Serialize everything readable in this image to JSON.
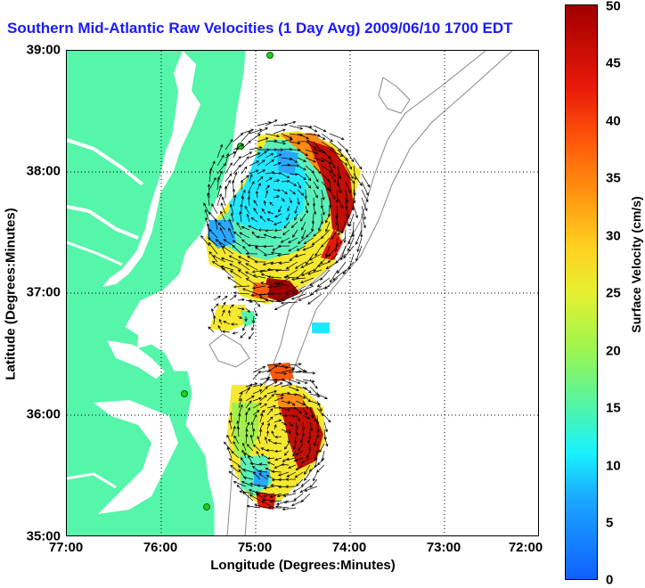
{
  "title": "Southern Mid-Atlantic Raw Velocities (1 Day Avg) 2009/06/10 1700 EDT",
  "axes": {
    "xlabel": "Longitude (Degrees:Minutes)",
    "ylabel": "Latitude (Degrees:Minutes)",
    "xticks": [
      "77:00",
      "76:00",
      "75:00",
      "74:00",
      "73:00",
      "72:00"
    ],
    "yticks": [
      "39:00",
      "38:00",
      "37:00",
      "36:00",
      "35:00"
    ],
    "grid": "dotted"
  },
  "colorbar": {
    "label": "Surface Velocity (cm/s)",
    "ticks": [
      "50",
      "45",
      "40",
      "35",
      "30",
      "25",
      "20",
      "15",
      "10",
      "5",
      "0"
    ],
    "range": [
      0,
      50
    ]
  },
  "colors": {
    "land": "#55f5aa",
    "title": "#1a1aff",
    "station": "#22cc22",
    "bathymetry": "#888888"
  },
  "icons": {
    "station": "green-dot",
    "vector": "arrow"
  }
}
